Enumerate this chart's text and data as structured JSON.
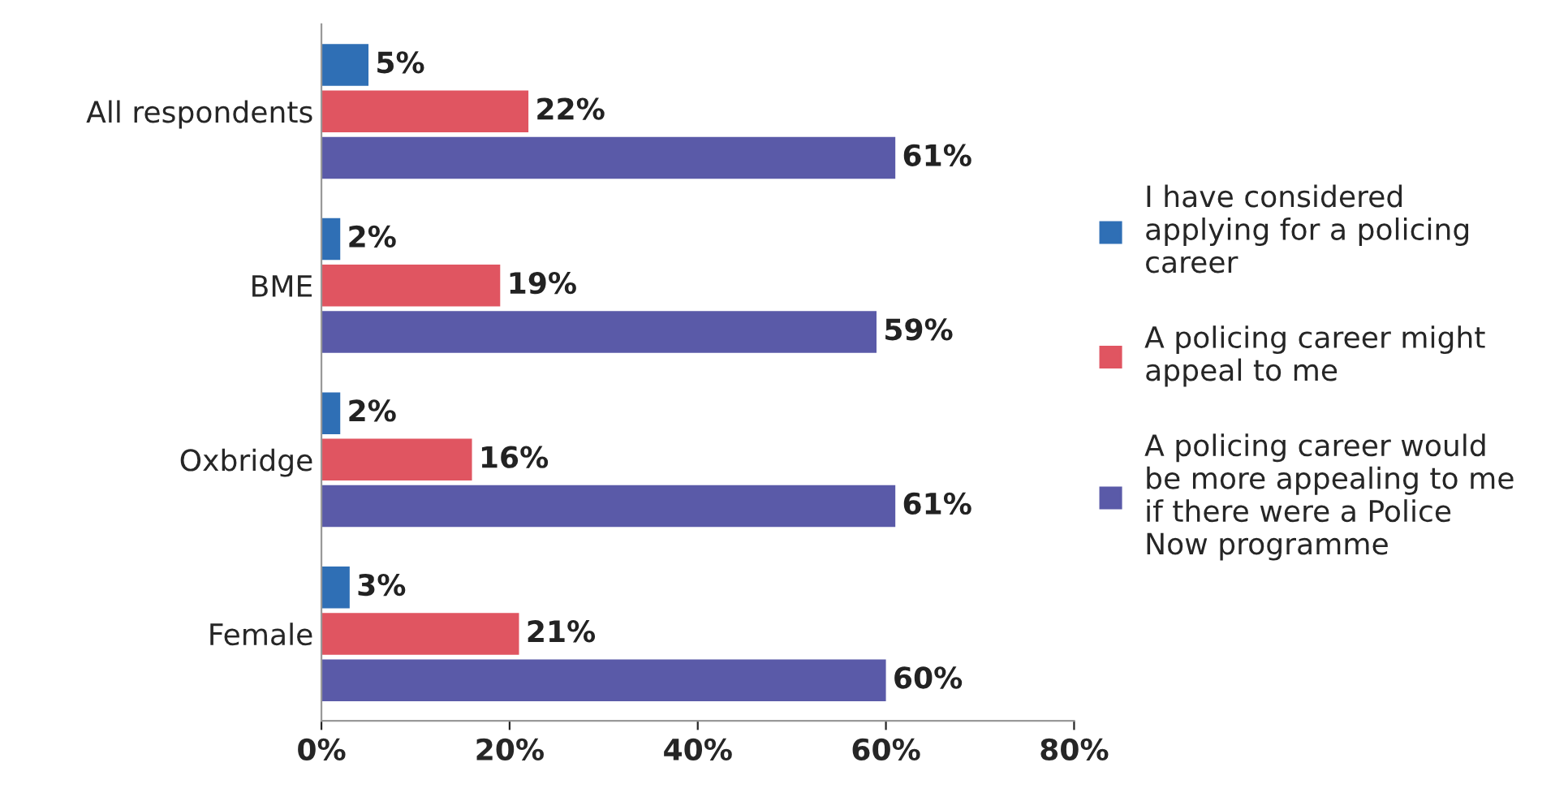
{
  "chart_data": {
    "type": "bar",
    "orientation": "horizontal",
    "categories": [
      "All respondents",
      "BME",
      "Oxbridge",
      "Female"
    ],
    "series": [
      {
        "name": "I have considered applying for a policing career",
        "color": "#2f6fb5",
        "values": [
          5,
          2,
          2,
          3
        ],
        "value_labels": [
          "5%",
          "2%",
          "2%",
          "3%"
        ]
      },
      {
        "name": "A policing career might appeal to me",
        "color": "#e05561",
        "values": [
          22,
          19,
          16,
          21
        ],
        "value_labels": [
          "22%",
          "19%",
          "16%",
          "21%"
        ]
      },
      {
        "name": "A policing career would be more appealing to me if there were a Police Now programme",
        "color": "#5a5aa8",
        "values": [
          61,
          59,
          61,
          60
        ],
        "value_labels": [
          "61%",
          "59%",
          "61%",
          "60%"
        ]
      }
    ],
    "xlim": [
      0,
      80
    ],
    "xticks": [
      {
        "value": 0,
        "label": "0%"
      },
      {
        "value": 20,
        "label": "20%"
      },
      {
        "value": 40,
        "label": "40%"
      },
      {
        "value": 60,
        "label": "60%"
      },
      {
        "value": 80,
        "label": "80%"
      }
    ],
    "grid": false,
    "legend": "right"
  }
}
